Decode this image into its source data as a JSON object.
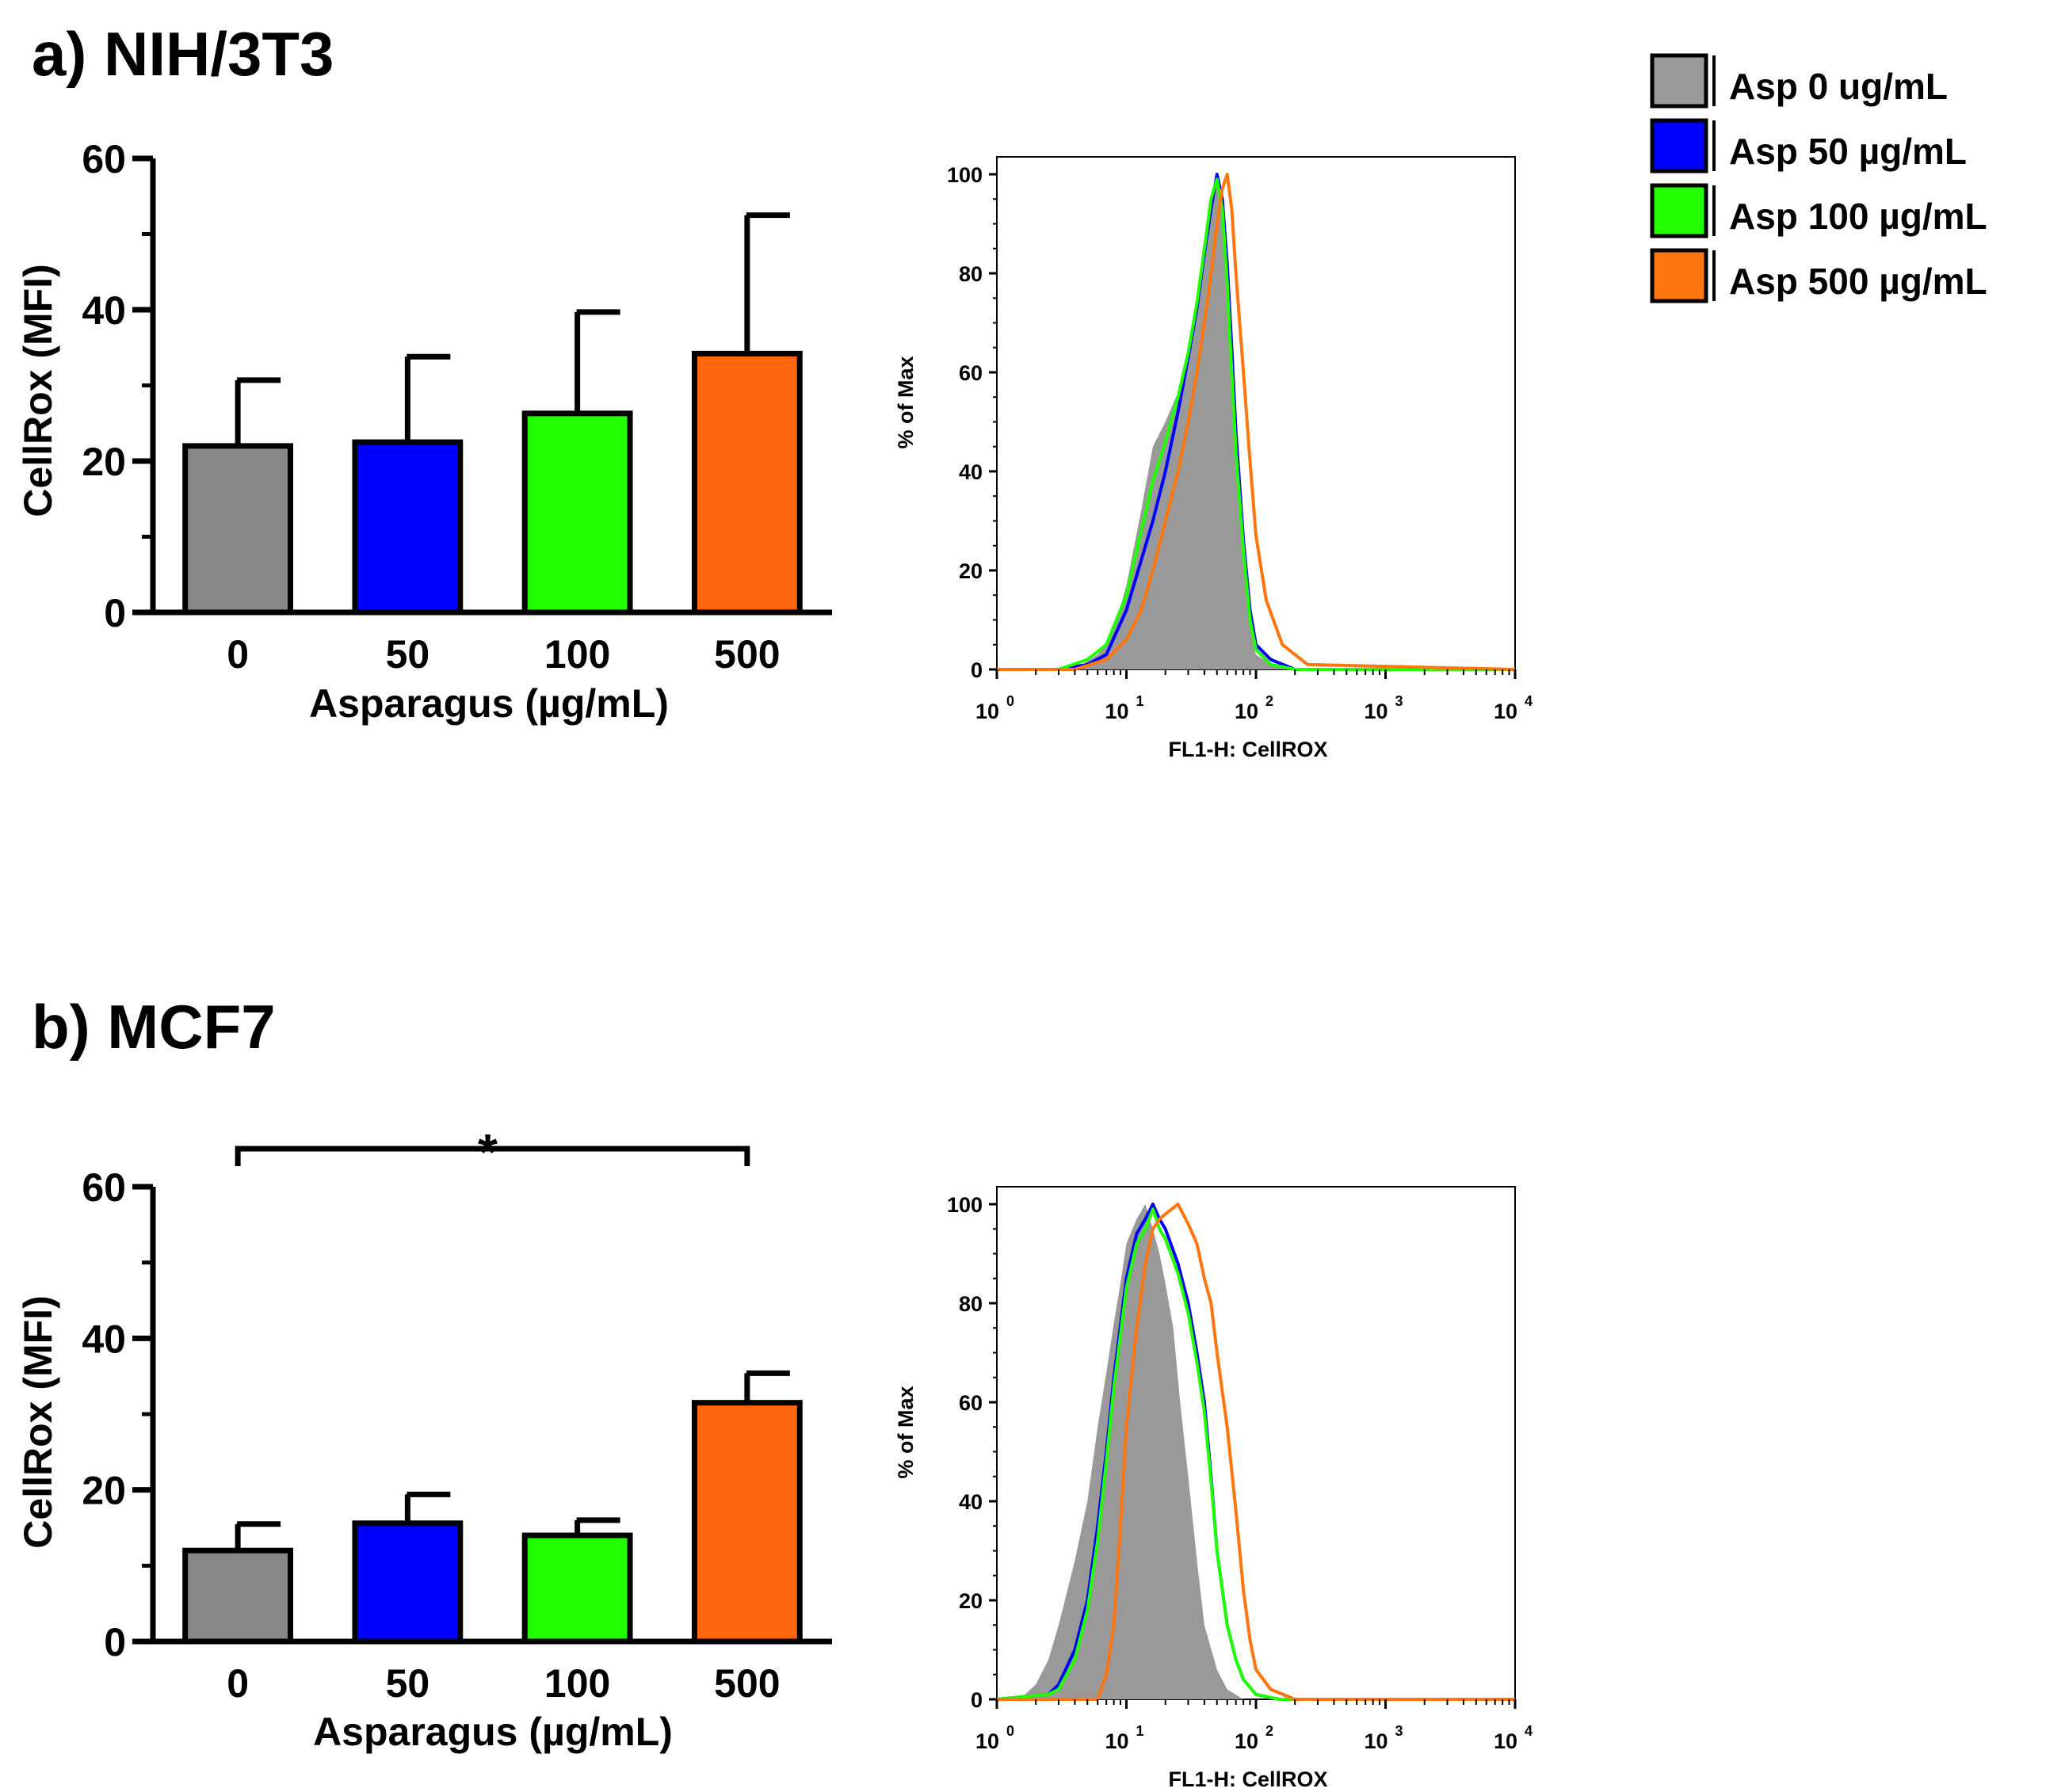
{
  "figure": {
    "legend": [
      {
        "label": "Asp 0 ug/mL",
        "color": "#999999"
      },
      {
        "label": "Asp 50 µg/mL",
        "color": "#0000ff"
      },
      {
        "label": "Asp 100 µg/mL",
        "color": "#22ff00"
      },
      {
        "label": "Asp 500 µg/mL",
        "color": "#ff7510"
      }
    ]
  },
  "chart_data": [
    {
      "panel": "a",
      "type": "bar",
      "title": "a) NIH/3T3",
      "categories": [
        "0",
        "50",
        "100",
        "500"
      ],
      "values": [
        22,
        22.5,
        26.3,
        34.2
      ],
      "errors": [
        8.7,
        11.3,
        13.4,
        18.3
      ],
      "colors": [
        "#888888",
        "#0000ff",
        "#22ff00",
        "#ff6610"
      ],
      "xlabel": "Asparagus (µg/mL)",
      "ylabel": "CellRox (MFI)",
      "ylim": [
        0,
        60
      ],
      "yticks": [
        "0",
        "20",
        "40",
        "60"
      ]
    },
    {
      "panel": "a",
      "type": "area",
      "xlabel": "FL1-H: CellROX",
      "ylabel": "% of Max",
      "xscale": "log",
      "xlim": [
        1,
        10000
      ],
      "ylim": [
        0,
        100
      ],
      "xtick_base": "10",
      "xtick_exponents": [
        "0",
        "1",
        "2",
        "3",
        "4"
      ],
      "yticks": [
        "0",
        "20",
        "40",
        "60",
        "80",
        "100"
      ],
      "series": [
        {
          "name": "Asp 0 ug/mL",
          "style": "filled",
          "color": "#999999",
          "x": [
            4,
            6,
            8,
            10,
            13,
            16,
            20,
            25,
            30,
            35,
            40,
            45,
            50,
            55,
            60,
            65,
            70,
            80,
            90,
            100,
            130,
            180,
            300
          ],
          "y": [
            0,
            3,
            8,
            17,
            32,
            45,
            50,
            56,
            65,
            75,
            85,
            94,
            100,
            94,
            80,
            60,
            40,
            22,
            10,
            3,
            1,
            0,
            0
          ]
        },
        {
          "name": "Asp 50 µg/mL",
          "style": "line",
          "color": "#0000ff",
          "x": [
            1,
            3,
            5,
            7,
            10,
            13,
            16,
            20,
            25,
            30,
            35,
            40,
            45,
            50,
            55,
            60,
            65,
            70,
            80,
            90,
            100,
            130,
            200,
            10000
          ],
          "y": [
            0,
            0,
            1,
            3,
            12,
            22,
            30,
            40,
            52,
            63,
            73,
            84,
            93,
            100,
            95,
            82,
            65,
            48,
            26,
            12,
            5,
            2,
            0,
            0
          ]
        },
        {
          "name": "Asp 100 µg/mL",
          "style": "line",
          "color": "#22ff00",
          "x": [
            1,
            3,
            5,
            7,
            10,
            13,
            16,
            20,
            25,
            30,
            35,
            40,
            45,
            50,
            55,
            60,
            65,
            70,
            80,
            90,
            100,
            130,
            200,
            10000
          ],
          "y": [
            0,
            0,
            2,
            5,
            15,
            28,
            38,
            46,
            55,
            64,
            74,
            85,
            95,
            99,
            93,
            78,
            60,
            44,
            24,
            10,
            4,
            1,
            0,
            0
          ]
        },
        {
          "name": "Asp 500 µg/mL",
          "style": "line",
          "color": "#ff7510",
          "x": [
            1,
            4,
            7,
            10,
            13,
            16,
            20,
            25,
            30,
            35,
            40,
            45,
            50,
            55,
            60,
            65,
            70,
            80,
            90,
            100,
            120,
            160,
            250,
            10000
          ],
          "y": [
            0,
            0,
            2,
            6,
            12,
            20,
            30,
            40,
            50,
            60,
            70,
            80,
            90,
            97,
            100,
            93,
            80,
            60,
            42,
            27,
            14,
            5,
            1,
            0
          ]
        }
      ]
    },
    {
      "panel": "b",
      "type": "bar",
      "title": "b) MCF7",
      "categories": [
        "0",
        "50",
        "100",
        "500"
      ],
      "values": [
        12,
        15.6,
        14,
        31.5
      ],
      "errors": [
        3.5,
        3.8,
        2,
        3.9
      ],
      "colors": [
        "#888888",
        "#0000ff",
        "#22ff00",
        "#ff6610"
      ],
      "xlabel": "Asparagus (µg/mL)",
      "ylabel": "CellRox (MFI)",
      "ylim": [
        0,
        60
      ],
      "yticks": [
        "0",
        "20",
        "40",
        "60"
      ],
      "significance": {
        "from": "0",
        "to": "500",
        "label": "*"
      }
    },
    {
      "panel": "b",
      "type": "area",
      "xlabel": "FL1-H: CellROX",
      "ylabel": "% of Max",
      "xscale": "log",
      "xlim": [
        1,
        10000
      ],
      "ylim": [
        0,
        100
      ],
      "xtick_base": "10",
      "xtick_exponents": [
        "0",
        "1",
        "2",
        "3",
        "4"
      ],
      "yticks": [
        "0",
        "20",
        "40",
        "60",
        "80",
        "100"
      ],
      "series": [
        {
          "name": "Asp 0 ug/mL",
          "style": "filled",
          "color": "#999999",
          "x": [
            1.5,
            2,
            2.5,
            3,
            4,
            5,
            6,
            7,
            8,
            9,
            10,
            12,
            14,
            16,
            18,
            20,
            23,
            26,
            30,
            35,
            40,
            50,
            60,
            80,
            120
          ],
          "y": [
            0,
            3,
            8,
            15,
            28,
            40,
            55,
            66,
            76,
            84,
            92,
            97,
            100,
            95,
            90,
            84,
            75,
            60,
            45,
            28,
            15,
            6,
            2,
            0,
            0
          ]
        },
        {
          "name": "Asp 50 µg/mL",
          "style": "line",
          "color": "#0000ff",
          "x": [
            1,
            2.5,
            3,
            4,
            5,
            6,
            7,
            8,
            10,
            12,
            14,
            16,
            18,
            20,
            25,
            30,
            35,
            40,
            45,
            50,
            60,
            70,
            80,
            100,
            150,
            10000
          ],
          "y": [
            0,
            1,
            3,
            10,
            20,
            35,
            50,
            65,
            85,
            94,
            97,
            100,
            97,
            95,
            88,
            80,
            70,
            60,
            45,
            30,
            15,
            8,
            4,
            1,
            0,
            0
          ]
        },
        {
          "name": "Asp 100 µg/mL",
          "style": "line",
          "color": "#22ff00",
          "x": [
            1,
            2.5,
            3,
            4,
            5,
            6,
            7,
            8,
            10,
            12,
            14,
            16,
            18,
            20,
            25,
            30,
            35,
            40,
            45,
            50,
            60,
            70,
            80,
            100,
            150,
            10000
          ],
          "y": [
            0,
            1,
            2,
            8,
            18,
            32,
            48,
            63,
            83,
            92,
            95,
            99,
            95,
            93,
            86,
            78,
            68,
            58,
            44,
            30,
            15,
            8,
            4,
            1,
            0,
            0
          ]
        },
        {
          "name": "Asp 500 µg/mL",
          "style": "line",
          "color": "#ff7510",
          "x": [
            1,
            6,
            7,
            8,
            9,
            10,
            12,
            14,
            16,
            18,
            20,
            25,
            30,
            35,
            40,
            45,
            50,
            60,
            70,
            80,
            90,
            100,
            130,
            200,
            10000
          ],
          "y": [
            0,
            0,
            5,
            15,
            35,
            55,
            75,
            88,
            95,
            97,
            98,
            100,
            96,
            92,
            85,
            80,
            70,
            55,
            38,
            22,
            12,
            6,
            2,
            0,
            0
          ]
        }
      ]
    }
  ]
}
